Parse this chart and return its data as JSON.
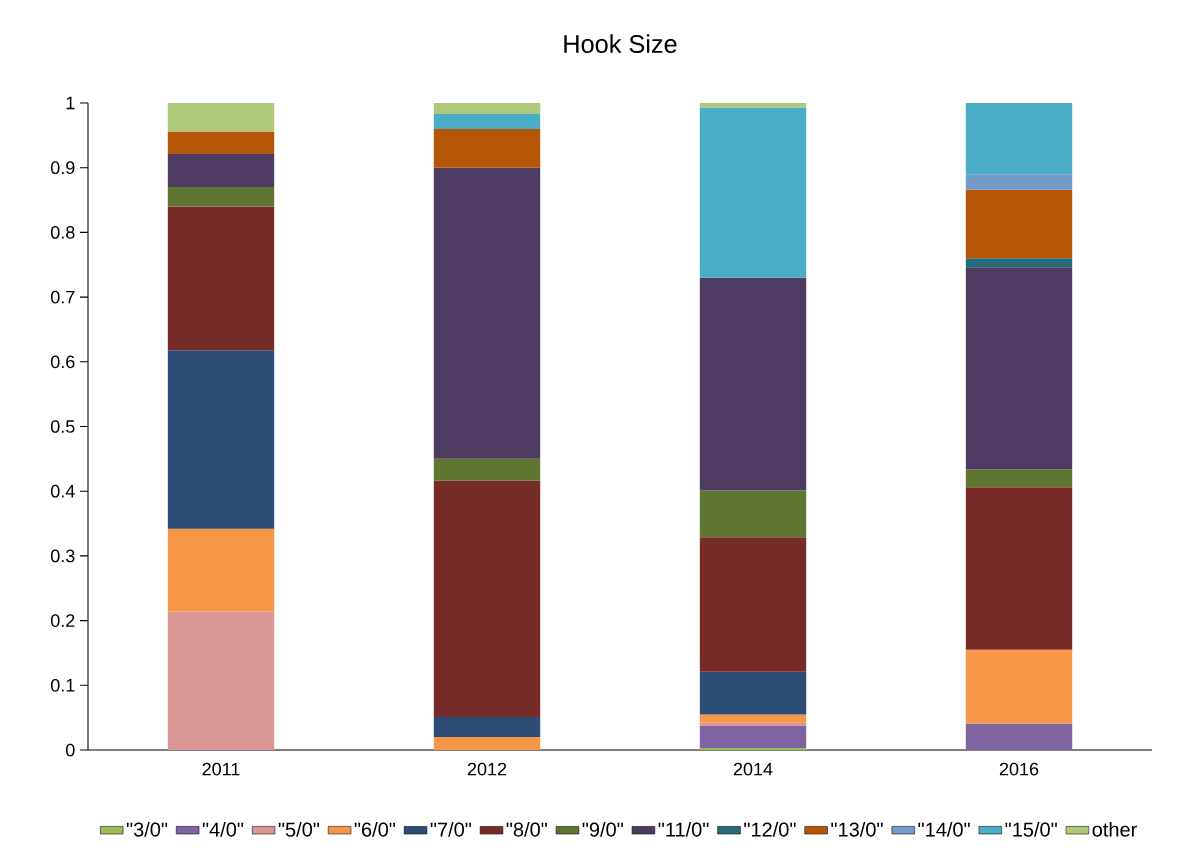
{
  "chart_data": {
    "type": "bar",
    "title": "Hook Size",
    "stacked": true,
    "categories": [
      "2011",
      "2012",
      "2014",
      "2016"
    ],
    "series": [
      {
        "name": "\"3/0\"",
        "color": "#9bbb59",
        "values": [
          null,
          null,
          0.003,
          null
        ]
      },
      {
        "name": "\"4/0\"",
        "color": "#8064a2",
        "values": [
          null,
          null,
          0.035,
          0.041
        ]
      },
      {
        "name": "\"5/0\"",
        "color": "#d99694",
        "values": [
          0.214,
          null,
          0.004,
          null
        ]
      },
      {
        "name": "\"6/0\"",
        "color": "#f79646",
        "values": [
          0.128,
          0.02,
          0.013,
          0.114
        ]
      },
      {
        "name": "\"7/0\"",
        "color": "#2c4d75",
        "values": [
          0.276,
          0.031,
          0.066,
          null
        ]
      },
      {
        "name": "\"8/0\"",
        "color": "#772c2a",
        "values": [
          0.222,
          0.365,
          0.208,
          0.251
        ]
      },
      {
        "name": "\"9/0\"",
        "color": "#5f7530",
        "values": [
          0.03,
          0.034,
          0.072,
          0.028
        ]
      },
      {
        "name": "\"11/0\"",
        "color": "#4d3b62",
        "values": [
          0.051,
          0.45,
          0.329,
          0.312
        ]
      },
      {
        "name": "\"12/0\"",
        "color": "#276a7c",
        "values": [
          null,
          null,
          null,
          0.014
        ]
      },
      {
        "name": "\"13/0\"",
        "color": "#b65708",
        "values": [
          0.035,
          0.06,
          null,
          0.106
        ]
      },
      {
        "name": "\"14/0\"",
        "color": "#729aca",
        "values": [
          null,
          null,
          null,
          0.024
        ]
      },
      {
        "name": "\"15/0\"",
        "color": "#4bacc6",
        "values": [
          null,
          0.023,
          0.263,
          0.11
        ]
      },
      {
        "name": "other",
        "color": "#afc97a",
        "values": [
          0.044,
          0.017,
          0.007,
          null
        ]
      }
    ],
    "ylim": [
      0,
      1
    ],
    "yticks": [
      0,
      0.1,
      0.2,
      0.3,
      0.4,
      0.5,
      0.6,
      0.7,
      0.8,
      0.9,
      1
    ],
    "grid": false,
    "legend": "bottom"
  }
}
